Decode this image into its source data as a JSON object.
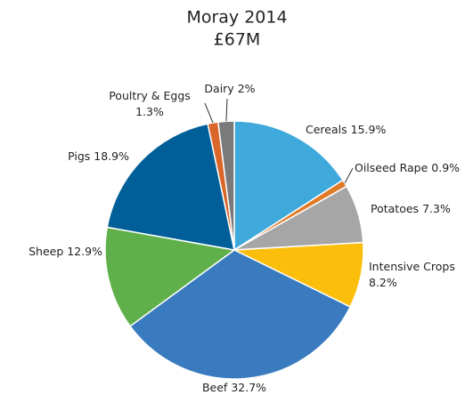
{
  "chart_data": {
    "type": "pie",
    "title": "Moray 2014",
    "subtitle": "£67M",
    "categories": [
      "Cereals",
      "Oilseed Rape",
      "Potatoes",
      "Intensive Crops",
      "Beef",
      "Sheep",
      "Pigs",
      "Poultry & Eggs",
      "Dairy"
    ],
    "values": [
      15.9,
      0.9,
      7.3,
      8.2,
      32.7,
      12.9,
      18.9,
      1.3,
      2
    ],
    "value_labels": [
      "15.9%",
      "0.9%",
      "7.3%",
      "8.2%",
      "32.7%",
      "12.9%",
      "18.9%",
      "1.3%",
      "2%"
    ],
    "colors": [
      "#3fa9dc",
      "#e07b2a",
      "#a6a6a6",
      "#fbbe0a",
      "#3a7bbf",
      "#5fb04a",
      "#005f99",
      "#d9662a",
      "#7a7a7a"
    ]
  }
}
